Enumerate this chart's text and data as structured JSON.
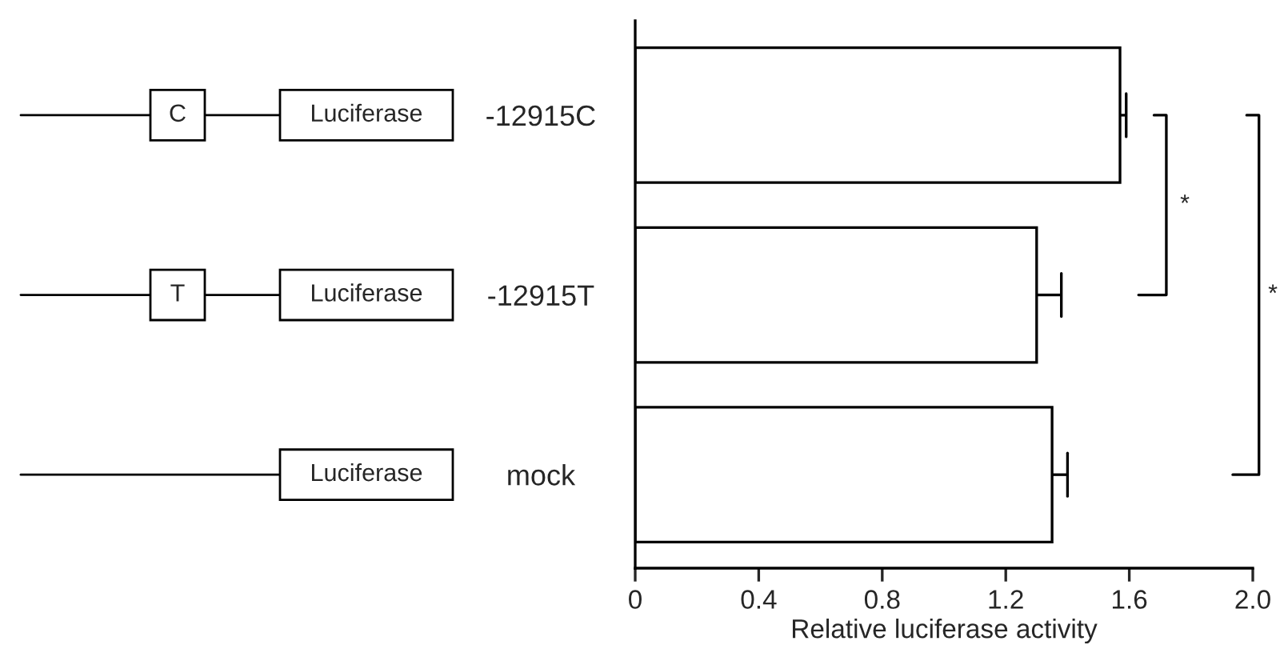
{
  "chart_data": {
    "type": "bar",
    "orientation": "horizontal",
    "categories": [
      "-12915C",
      "-12915T",
      "mock"
    ],
    "values": [
      1.57,
      1.3,
      1.35
    ],
    "errors": [
      [
        1.57,
        1.59
      ],
      [
        1.3,
        1.38
      ],
      [
        1.35,
        1.4
      ]
    ],
    "color": "#ffffff",
    "xlabel": "Relative luciferase activity",
    "xlim": [
      0,
      2.0
    ],
    "xticks": [
      0,
      0.4,
      0.8,
      1.2,
      1.6,
      {
        "value": 2,
        "label": "2.0"
      }
    ],
    "grid": false,
    "legend": false,
    "annotations": [
      "C",
      "Luciferase",
      "T",
      "Luciferase",
      "Luciferase",
      "*",
      "*"
    ]
  }
}
